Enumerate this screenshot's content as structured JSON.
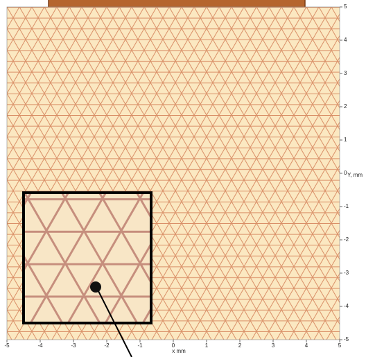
{
  "chart_data": {
    "type": "image",
    "xlabel": "x mm",
    "ylabel": "Y, mm",
    "xlim": [
      -5,
      5
    ],
    "ylim": [
      -5,
      5
    ],
    "xticks": [
      -5,
      -4,
      -3,
      -2,
      -1,
      0,
      1,
      2,
      3,
      4,
      5
    ],
    "yticks": [
      -5,
      -4,
      -3,
      -2,
      -1,
      0,
      1,
      2,
      3,
      4,
      5
    ]
  }
}
